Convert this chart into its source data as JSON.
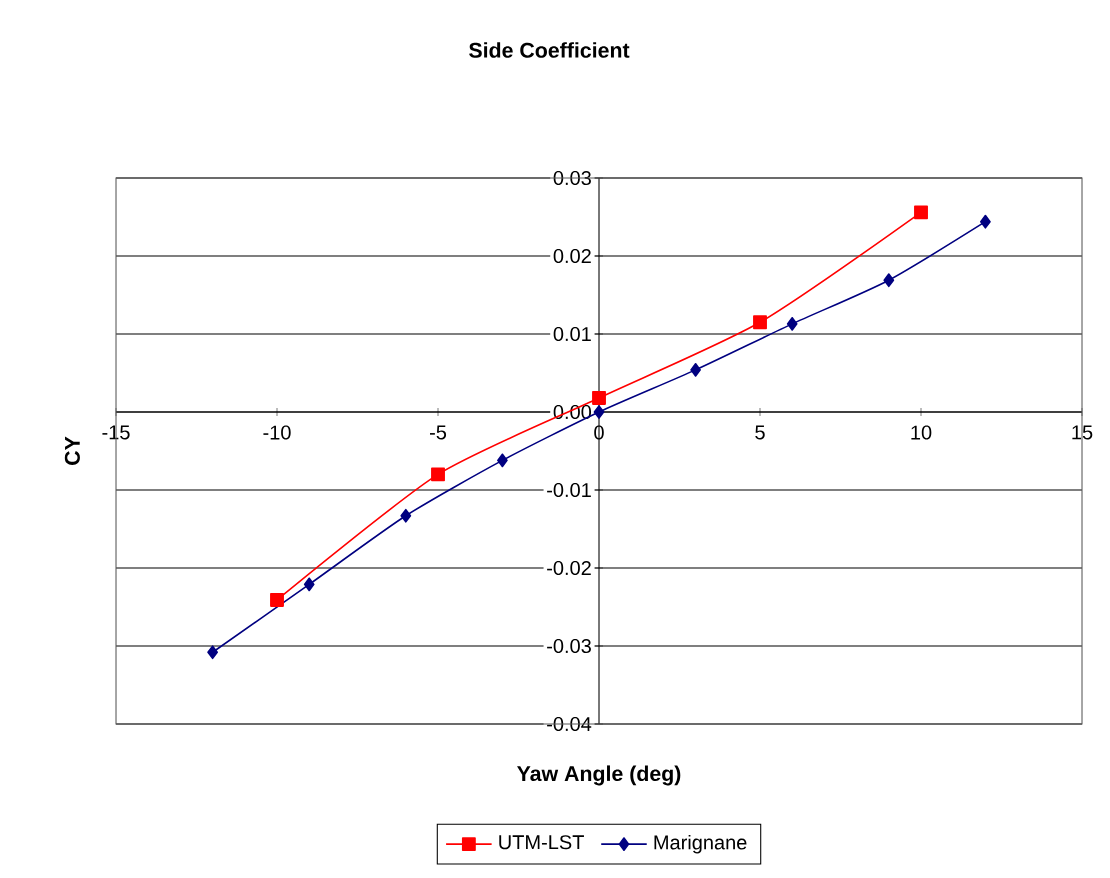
{
  "chart_data": {
    "type": "line",
    "title": "Side Coefficient",
    "xlabel": "Yaw Angle (deg)",
    "ylabel": "CY",
    "xlim": [
      -15,
      15
    ],
    "xticks": [
      -15,
      -10,
      -5,
      0,
      5,
      10,
      15
    ],
    "ylim": [
      -0.04,
      0.03
    ],
    "yticks": [
      -0.04,
      -0.03,
      -0.02,
      -0.01,
      {
        "value": 0,
        "label": "0.00"
      },
      0.01,
      0.02,
      0.03
    ],
    "grid": "y",
    "legend": "bottom",
    "line_style": "solid",
    "series": [
      {
        "name": "UTM-LST",
        "color": "#ff0000",
        "marker": "square",
        "x": [
          -10,
          -5,
          0,
          5,
          10
        ],
        "values": [
          -0.0241,
          -0.008,
          0.0018,
          0.0115,
          0.0256
        ]
      },
      {
        "name": "Marignane",
        "color": "#000080",
        "marker": "diamond",
        "x": [
          -12,
          -9,
          -6,
          -3,
          0,
          3,
          6,
          9,
          12
        ],
        "values": [
          -0.0308,
          -0.0221,
          -0.0133,
          -0.0062,
          0.0,
          0.0054,
          0.0113,
          0.0169,
          0.0244
        ]
      }
    ]
  }
}
